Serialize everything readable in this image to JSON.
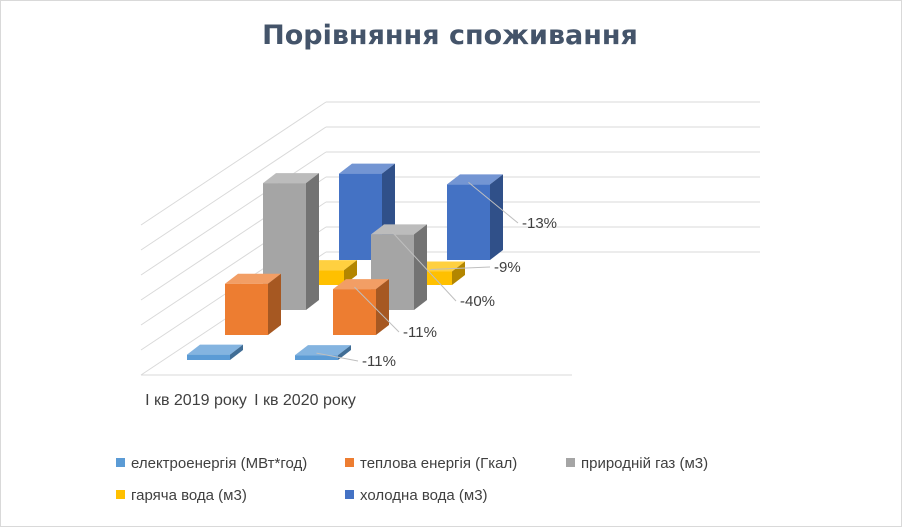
{
  "chart_data": {
    "type": "bar",
    "title": "Порівняння споживання",
    "categories": [
      "І кв 2019 року",
      "І кв 2020 року"
    ],
    "series": [
      {
        "name": "електроенергія (МВт*год)",
        "color": "#5b9bd5",
        "values": [
          0.2,
          0.18
        ],
        "change_label": "-11%"
      },
      {
        "name": "теплова енергія (Гкал)",
        "color": "#ed7d31",
        "values": [
          1.9,
          1.7
        ],
        "change_label": "-11%"
      },
      {
        "name": "природній газ (м3)",
        "color": "#a5a5a5",
        "values": [
          4.7,
          2.8
        ],
        "change_label": "-40%"
      },
      {
        "name": "гаряча вода (м3)",
        "color": "#ffc000",
        "values": [
          0.55,
          0.5
        ],
        "change_label": "-9%"
      },
      {
        "name": "холодна вода (м3)",
        "color": "#4472c4",
        "values": [
          3.2,
          2.8
        ],
        "change_label": "-13%"
      }
    ],
    "grid": true,
    "legend_position": "bottom"
  }
}
